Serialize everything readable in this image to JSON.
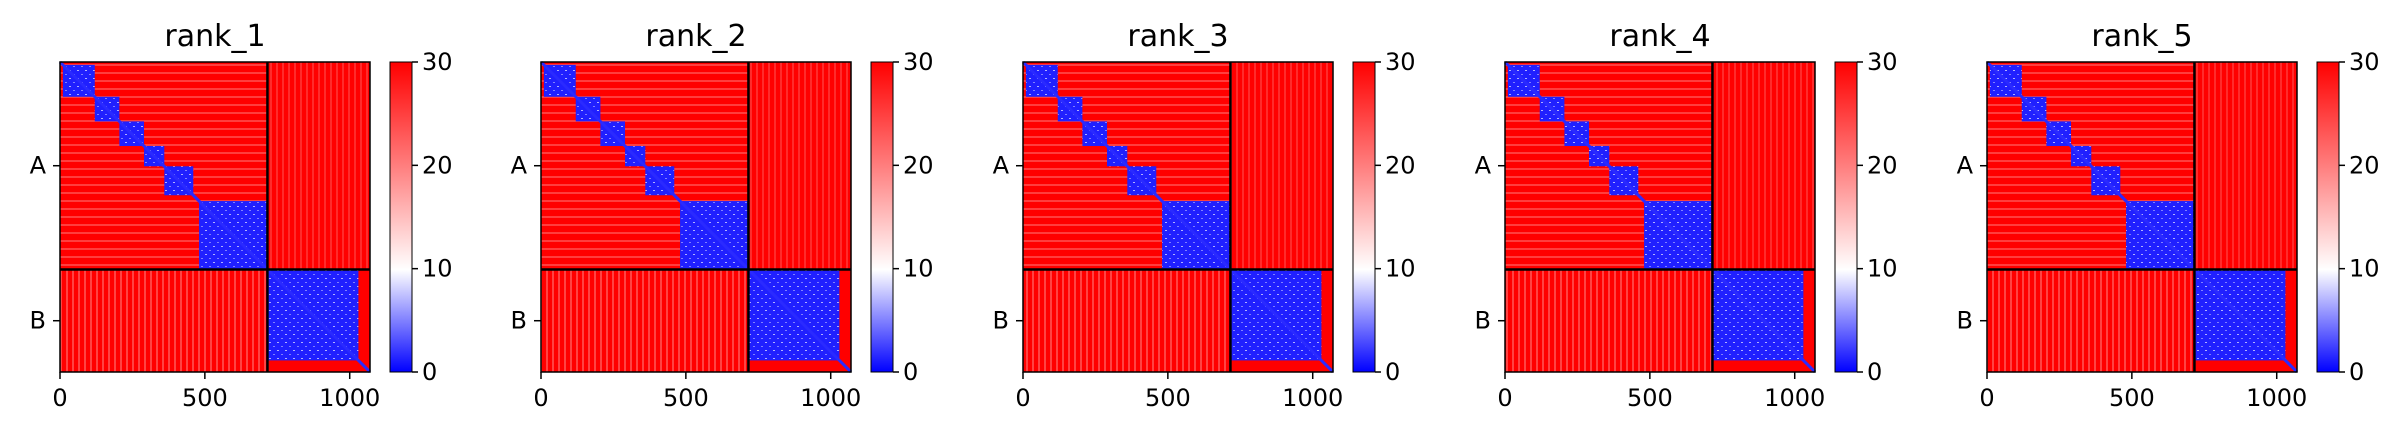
{
  "chart_data": [
    {
      "type": "heatmap",
      "title": "rank_1",
      "chains": [
        "A",
        "B"
      ],
      "chain_boundary": 716,
      "length": 1070,
      "xticks": [
        0,
        500,
        1000
      ],
      "colorbar": {
        "ticks": [
          0,
          10,
          20,
          30
        ],
        "range": [
          0,
          30
        ],
        "colors": [
          "#0000ff",
          "#ffffff",
          "#ff0000"
        ]
      },
      "domains_A": [
        [
          10,
          120
        ],
        [
          120,
          205
        ],
        [
          205,
          290
        ],
        [
          290,
          360
        ],
        [
          360,
          460
        ],
        [
          480,
          716
        ]
      ],
      "domain_B": [
        716,
        1030
      ]
    },
    {
      "type": "heatmap",
      "title": "rank_2",
      "chains": [
        "A",
        "B"
      ],
      "chain_boundary": 716,
      "length": 1070,
      "xticks": [
        0,
        500,
        1000
      ],
      "colorbar": {
        "ticks": [
          0,
          10,
          20,
          30
        ],
        "range": [
          0,
          30
        ],
        "colors": [
          "#0000ff",
          "#ffffff",
          "#ff0000"
        ]
      },
      "domains_A": [
        [
          10,
          120
        ],
        [
          120,
          205
        ],
        [
          205,
          290
        ],
        [
          290,
          360
        ],
        [
          360,
          460
        ],
        [
          480,
          716
        ]
      ],
      "domain_B": [
        716,
        1030
      ]
    },
    {
      "type": "heatmap",
      "title": "rank_3",
      "chains": [
        "A",
        "B"
      ],
      "chain_boundary": 716,
      "length": 1070,
      "xticks": [
        0,
        500,
        1000
      ],
      "colorbar": {
        "ticks": [
          0,
          10,
          20,
          30
        ],
        "range": [
          0,
          30
        ],
        "colors": [
          "#0000ff",
          "#ffffff",
          "#ff0000"
        ]
      },
      "domains_A": [
        [
          10,
          120
        ],
        [
          120,
          205
        ],
        [
          205,
          290
        ],
        [
          290,
          360
        ],
        [
          360,
          460
        ],
        [
          480,
          716
        ]
      ],
      "domain_B": [
        716,
        1030
      ]
    },
    {
      "type": "heatmap",
      "title": "rank_4",
      "chains": [
        "A",
        "B"
      ],
      "chain_boundary": 716,
      "length": 1070,
      "xticks": [
        0,
        500,
        1000
      ],
      "colorbar": {
        "ticks": [
          0,
          10,
          20,
          30
        ],
        "range": [
          0,
          30
        ],
        "colors": [
          "#0000ff",
          "#ffffff",
          "#ff0000"
        ]
      },
      "domains_A": [
        [
          10,
          120
        ],
        [
          120,
          205
        ],
        [
          205,
          290
        ],
        [
          290,
          360
        ],
        [
          360,
          460
        ],
        [
          480,
          716
        ]
      ],
      "domain_B": [
        716,
        1030
      ]
    },
    {
      "type": "heatmap",
      "title": "rank_5",
      "chains": [
        "A",
        "B"
      ],
      "chain_boundary": 716,
      "length": 1070,
      "xticks": [
        0,
        500,
        1000
      ],
      "colorbar": {
        "ticks": [
          0,
          10,
          20,
          30
        ],
        "range": [
          0,
          30
        ],
        "colors": [
          "#0000ff",
          "#ffffff",
          "#ff0000"
        ]
      },
      "domains_A": [
        [
          10,
          120
        ],
        [
          120,
          205
        ],
        [
          205,
          290
        ],
        [
          290,
          360
        ],
        [
          360,
          460
        ],
        [
          480,
          716
        ]
      ],
      "domain_B": [
        716,
        1030
      ]
    }
  ]
}
